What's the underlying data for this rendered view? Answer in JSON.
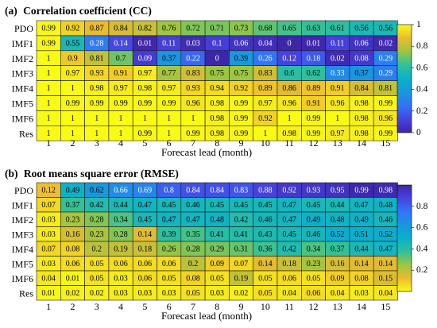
{
  "chart_data": [
    {
      "type": "heatmap",
      "panel_label": "(a)",
      "title": "Correlation coefficient (CC)",
      "rows": [
        "PDO",
        "IMF1",
        "IMF2",
        "IMF3",
        "IMF4",
        "IMF5",
        "IMF6",
        "Res"
      ],
      "columns": [
        "1",
        "2",
        "3",
        "4",
        "5",
        "6",
        "7",
        "8",
        "9",
        "10",
        "11",
        "12",
        "13",
        "14",
        "15"
      ],
      "xlabel": "Forecast lead (month)",
      "values": [
        [
          0.99,
          0.92,
          0.87,
          0.84,
          0.82,
          0.76,
          0.72,
          0.71,
          0.73,
          0.68,
          0.65,
          0.63,
          0.61,
          0.56,
          0.56
        ],
        [
          0.99,
          0.55,
          0.28,
          0.14,
          0.01,
          0.11,
          0.03,
          0.1,
          0.06,
          0.04,
          0,
          0.01,
          0.11,
          0.06,
          0.02
        ],
        [
          1,
          0.9,
          0.81,
          0.7,
          0.09,
          0.37,
          0.22,
          0,
          0.39,
          0.26,
          0.12,
          0.18,
          0.02,
          0.08,
          0.29
        ],
        [
          1,
          0.97,
          0.93,
          0.91,
          0.97,
          0.77,
          0.83,
          0.75,
          0.75,
          0.83,
          0.6,
          0.62,
          0.33,
          0.37,
          0.29
        ],
        [
          1,
          1,
          0.98,
          0.97,
          0.98,
          0.97,
          0.93,
          0.94,
          0.92,
          0.89,
          0.86,
          0.89,
          0.91,
          0.84,
          0.81
        ],
        [
          1,
          0.99,
          0.99,
          0.99,
          0.99,
          0.99,
          0.96,
          0.98,
          0.99,
          0.97,
          0.96,
          0.91,
          0.96,
          0.98,
          0.99
        ],
        [
          1,
          1,
          1,
          1,
          1,
          1,
          1,
          0.98,
          0.99,
          0.92,
          1,
          0.99,
          1,
          0.98,
          0.96
        ],
        [
          1,
          1,
          1,
          1,
          0.99,
          1,
          0.99,
          0.98,
          0.99,
          1,
          0.98,
          0.99,
          0.97,
          0.98,
          0.99
        ]
      ],
      "colorbar": {
        "range": [
          0,
          1
        ],
        "ticks": [
          "1",
          "0.8",
          "0.6",
          "0.4",
          "0.2",
          "0"
        ],
        "colormap": "parula"
      }
    },
    {
      "type": "heatmap",
      "panel_label": "(b)",
      "title": "Root means square error (RMSE)",
      "rows": [
        "PDO",
        "IMF1",
        "IMF2",
        "IMF3",
        "IMF4",
        "IMF5",
        "IMF6",
        "Res"
      ],
      "columns": [
        "1",
        "2",
        "3",
        "4",
        "5",
        "6",
        "7",
        "8",
        "9",
        "10",
        "11",
        "12",
        "13",
        "14",
        "15"
      ],
      "xlabel": "Forecast lead (month)",
      "values": [
        [
          0.12,
          0.49,
          0.62,
          0.66,
          0.69,
          0.8,
          0.84,
          0.84,
          0.83,
          0.88,
          0.92,
          0.93,
          0.95,
          0.99,
          0.98
        ],
        [
          0.07,
          0.37,
          0.42,
          0.44,
          0.47,
          0.45,
          0.46,
          0.45,
          0.45,
          0.45,
          0.47,
          0.45,
          0.44,
          0.47,
          0.48
        ],
        [
          0.03,
          0.23,
          0.28,
          0.34,
          0.45,
          0.47,
          0.47,
          0.48,
          0.42,
          0.46,
          0.47,
          0.49,
          0.48,
          0.49,
          0.46
        ],
        [
          0.03,
          0.16,
          0.23,
          0.28,
          0.14,
          0.39,
          0.35,
          0.41,
          0.41,
          0.43,
          0.45,
          0.46,
          0.52,
          0.51,
          0.52
        ],
        [
          0.07,
          0.08,
          0.2,
          0.19,
          0.18,
          0.26,
          0.28,
          0.29,
          0.31,
          0.36,
          0.42,
          0.34,
          0.37,
          0.44,
          0.47
        ],
        [
          0.03,
          0.06,
          0.05,
          0.06,
          0.06,
          0.06,
          0.2,
          0.09,
          0.07,
          0.14,
          0.18,
          0.23,
          0.16,
          0.14,
          0.14
        ],
        [
          0.04,
          0.01,
          0.05,
          0.03,
          0.06,
          0.05,
          0.08,
          0.05,
          0.19,
          0.05,
          0.06,
          0.05,
          0.09,
          0.08,
          0.15
        ],
        [
          0.01,
          0.02,
          0.02,
          0.03,
          0.03,
          0.03,
          0.05,
          0.03,
          0.02,
          0.05,
          0.04,
          0.06,
          0.04,
          0.03,
          0.04
        ]
      ],
      "colorbar": {
        "range": [
          0,
          1
        ],
        "ticks": [
          "0.8",
          "0.6",
          "0.4",
          "0.2"
        ],
        "colormap": "parula_reversed"
      }
    }
  ]
}
